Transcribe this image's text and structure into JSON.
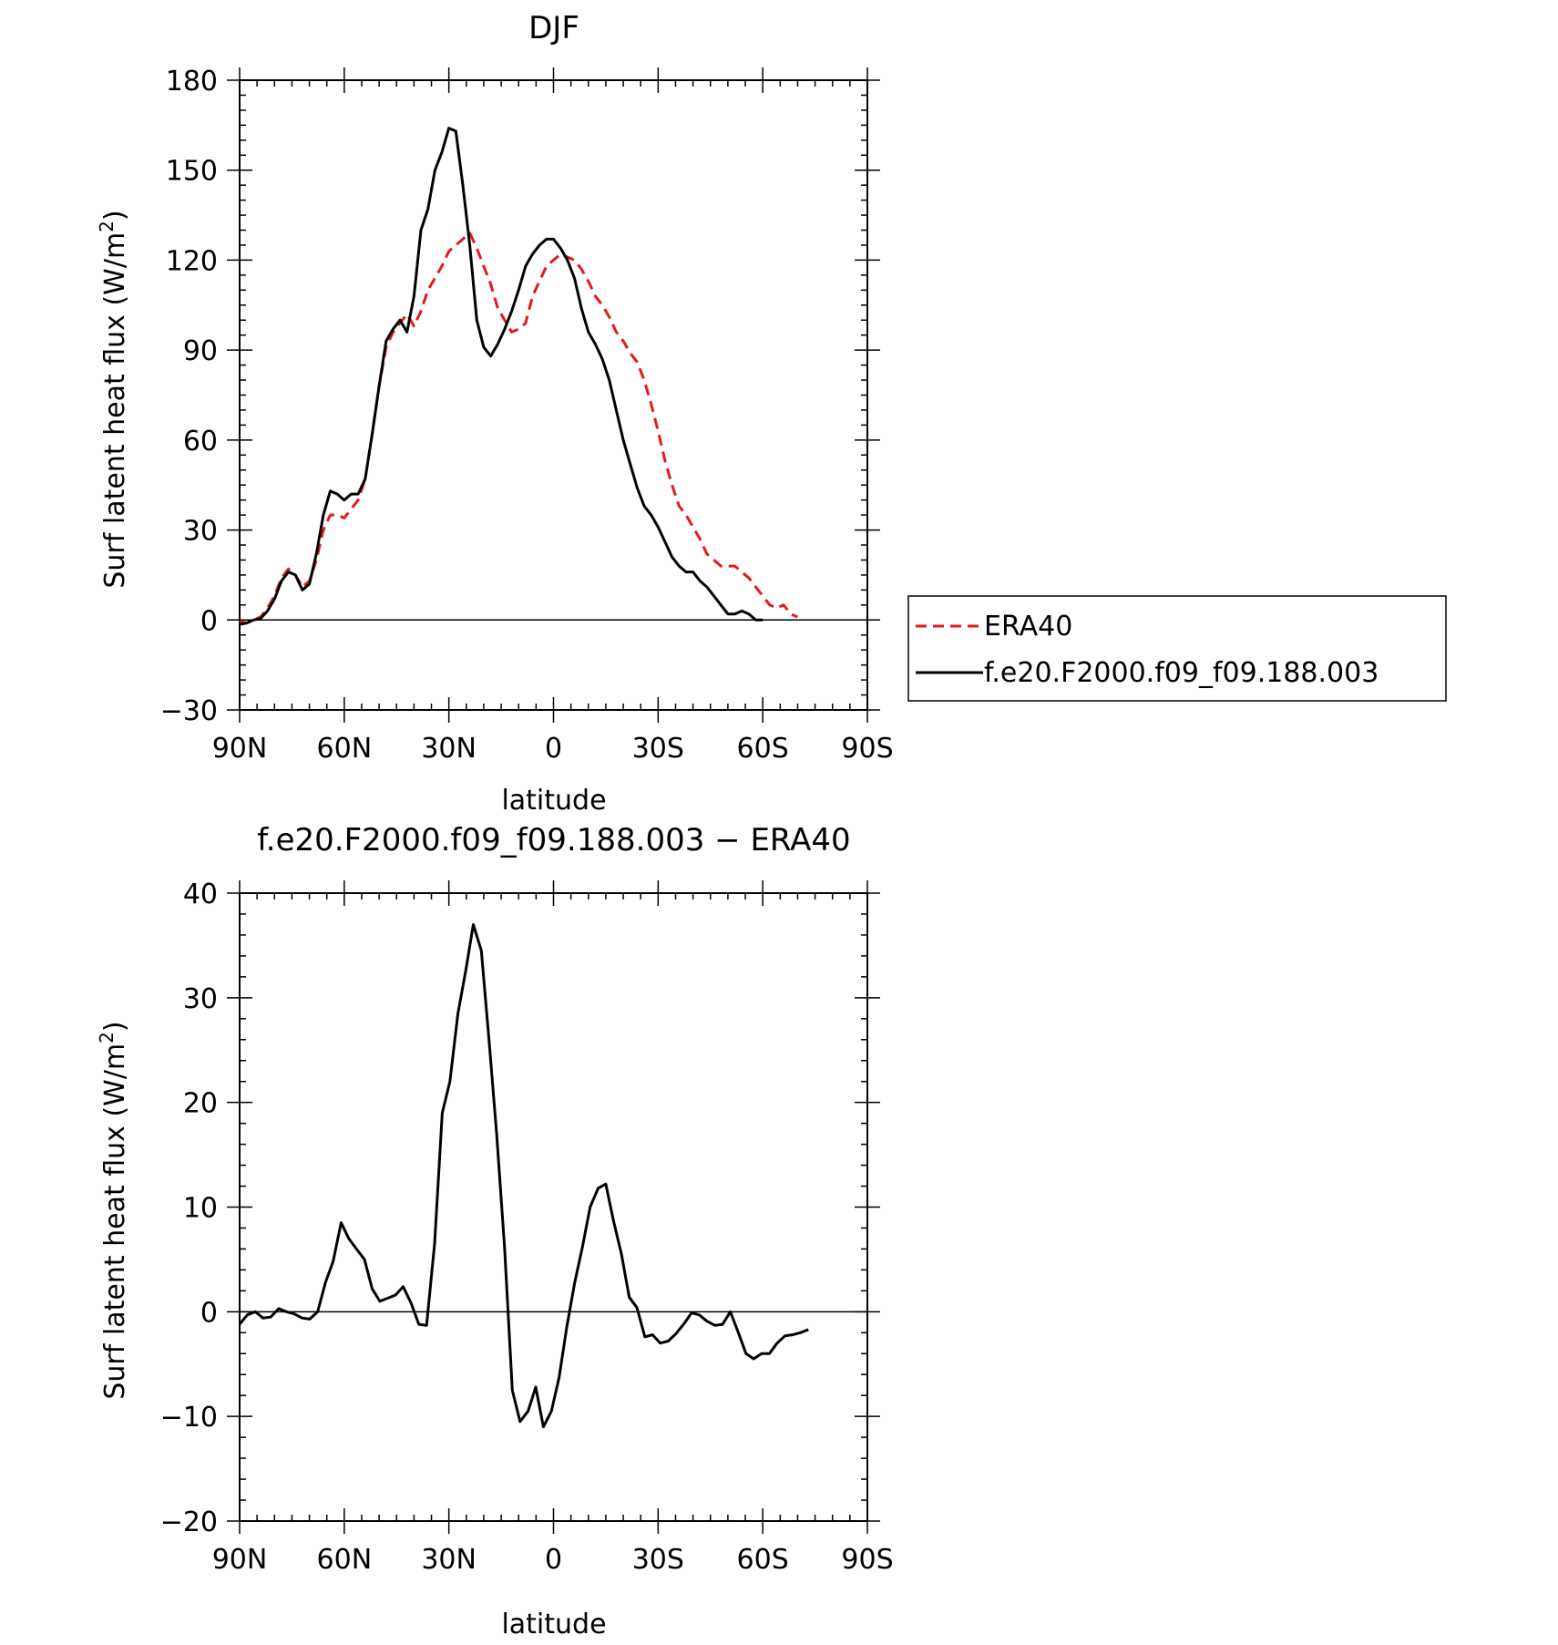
{
  "chart_data": [
    {
      "type": "line",
      "title": "DJF",
      "xlabel": "latitude",
      "ylabel": "Surf latent heat flux (W/m²)",
      "ylabel_main": "Surf latent heat flux (W/m",
      "ylabel_sup": "2",
      "ylabel_close": ")",
      "xlim": [
        90,
        -90
      ],
      "ylim": [
        -30,
        180
      ],
      "x_ticks": [
        {
          "value": 90,
          "label": "90N"
        },
        {
          "value": 60,
          "label": "60N"
        },
        {
          "value": 30,
          "label": "30N"
        },
        {
          "value": 0,
          "label": "0"
        },
        {
          "value": -30,
          "label": "30S"
        },
        {
          "value": -60,
          "label": "60S"
        },
        {
          "value": -90,
          "label": "90S"
        }
      ],
      "y_ticks": [
        {
          "value": 180,
          "label": "180"
        },
        {
          "value": 150,
          "label": "150"
        },
        {
          "value": 120,
          "label": "120"
        },
        {
          "value": 90,
          "label": "90"
        },
        {
          "value": 60,
          "label": "60"
        },
        {
          "value": 30,
          "label": "30"
        },
        {
          "value": 0,
          "label": "0"
        },
        {
          "value": -30,
          "label": "−30"
        }
      ],
      "zero_line": true,
      "legend": {
        "position": "right"
      },
      "series": [
        {
          "name": "ERA40",
          "color": "#e41a1c",
          "dash": "dashed",
          "points": [
            [
              90,
              -0.5
            ],
            [
              88,
              -1
            ],
            [
              86,
              0
            ],
            [
              84,
              1
            ],
            [
              82,
              4
            ],
            [
              80,
              8
            ],
            [
              78,
              14
            ],
            [
              76,
              17
            ],
            [
              74,
              15
            ],
            [
              72,
              11
            ],
            [
              70,
              13
            ],
            [
              68,
              20
            ],
            [
              66,
              30
            ],
            [
              64,
              35
            ],
            [
              62,
              35
            ],
            [
              60,
              34
            ],
            [
              58,
              37
            ],
            [
              56,
              40
            ],
            [
              54,
              47
            ],
            [
              52,
              62
            ],
            [
              50,
              78
            ],
            [
              48,
              91
            ],
            [
              46,
              96
            ],
            [
              44,
              99
            ],
            [
              42,
              102
            ],
            [
              40,
              98
            ],
            [
              38,
              103
            ],
            [
              36,
              110
            ],
            [
              34,
              114
            ],
            [
              32,
              118
            ],
            [
              30,
              123
            ],
            [
              28,
              125
            ],
            [
              26,
              127
            ],
            [
              24,
              129
            ],
            [
              22,
              124
            ],
            [
              20,
              118
            ],
            [
              18,
              112
            ],
            [
              16,
              104
            ],
            [
              14,
              100
            ],
            [
              12,
              96
            ],
            [
              10,
              97
            ],
            [
              8,
              99
            ],
            [
              6,
              108
            ],
            [
              4,
              113
            ],
            [
              2,
              118
            ],
            [
              0,
              120
            ],
            [
              -2,
              122
            ],
            [
              -4,
              121
            ],
            [
              -6,
              120
            ],
            [
              -8,
              117
            ],
            [
              -10,
              113
            ],
            [
              -12,
              108
            ],
            [
              -14,
              105
            ],
            [
              -16,
              101
            ],
            [
              -18,
              96
            ],
            [
              -20,
              93
            ],
            [
              -22,
              89
            ],
            [
              -24,
              86
            ],
            [
              -26,
              80
            ],
            [
              -28,
              72
            ],
            [
              -30,
              63
            ],
            [
              -32,
              53
            ],
            [
              -34,
              45
            ],
            [
              -36,
              38
            ],
            [
              -38,
              35
            ],
            [
              -40,
              31
            ],
            [
              -42,
              27
            ],
            [
              -44,
              22
            ],
            [
              -46,
              20
            ],
            [
              -48,
              18
            ],
            [
              -50,
              18
            ],
            [
              -52,
              18
            ],
            [
              -54,
              16
            ],
            [
              -56,
              14
            ],
            [
              -58,
              11
            ],
            [
              -60,
              8
            ],
            [
              -62,
              5
            ],
            [
              -64,
              4
            ],
            [
              -66,
              5
            ],
            [
              -68,
              2
            ],
            [
              -70,
              1
            ]
          ]
        },
        {
          "name": "f.e20.F2000.f09_f09.188.003",
          "color": "#000000",
          "dash": "solid",
          "points": [
            [
              90,
              -1.5
            ],
            [
              88,
              -1
            ],
            [
              86,
              0
            ],
            [
              84,
              0.5
            ],
            [
              82,
              3
            ],
            [
              80,
              7
            ],
            [
              78,
              13
            ],
            [
              76,
              16
            ],
            [
              74,
              15
            ],
            [
              72,
              10
            ],
            [
              70,
              12
            ],
            [
              68,
              22
            ],
            [
              66,
              35
            ],
            [
              64,
              43
            ],
            [
              62,
              42
            ],
            [
              60,
              40
            ],
            [
              58,
              42
            ],
            [
              56,
              42
            ],
            [
              54,
              47
            ],
            [
              52,
              62
            ],
            [
              50,
              78
            ],
            [
              48,
              93
            ],
            [
              46,
              97
            ],
            [
              44,
              100
            ],
            [
              42,
              96
            ],
            [
              40,
              108
            ],
            [
              38,
              130
            ],
            [
              36,
              137
            ],
            [
              34,
              150
            ],
            [
              32,
              156
            ],
            [
              30,
              164
            ],
            [
              28,
              163
            ],
            [
              26,
              145
            ],
            [
              24,
              125
            ],
            [
              22,
              100
            ],
            [
              20,
              91
            ],
            [
              18,
              88
            ],
            [
              16,
              92
            ],
            [
              14,
              97
            ],
            [
              12,
              103
            ],
            [
              10,
              110
            ],
            [
              8,
              118
            ],
            [
              6,
              122
            ],
            [
              4,
              125
            ],
            [
              2,
              127
            ],
            [
              0,
              127
            ],
            [
              -2,
              124
            ],
            [
              -4,
              120
            ],
            [
              -6,
              114
            ],
            [
              -8,
              104
            ],
            [
              -10,
              96
            ],
            [
              -12,
              92
            ],
            [
              -14,
              87
            ],
            [
              -16,
              80
            ],
            [
              -18,
              70
            ],
            [
              -20,
              60
            ],
            [
              -22,
              52
            ],
            [
              -24,
              44
            ],
            [
              -26,
              38
            ],
            [
              -28,
              35
            ],
            [
              -30,
              31
            ],
            [
              -32,
              26
            ],
            [
              -34,
              21
            ],
            [
              -36,
              18
            ],
            [
              -38,
              16
            ],
            [
              -40,
              16
            ],
            [
              -42,
              13
            ],
            [
              -44,
              11
            ],
            [
              -46,
              8
            ],
            [
              -48,
              5
            ],
            [
              -50,
              2
            ],
            [
              -52,
              2
            ],
            [
              -54,
              3
            ],
            [
              -56,
              2
            ],
            [
              -58,
              0
            ],
            [
              -60,
              0
            ]
          ]
        }
      ]
    },
    {
      "type": "line",
      "title": "f.e20.F2000.f09_f09.188.003 − ERA40",
      "xlabel": "latitude",
      "ylabel": "Surf latent heat flux (W/m²)",
      "ylabel_main": "Surf latent heat flux (W/m",
      "ylabel_sup": "2",
      "ylabel_close": ")",
      "xlim": [
        90,
        -90
      ],
      "ylim": [
        -20,
        40
      ],
      "x_ticks": [
        {
          "value": 90,
          "label": "90N"
        },
        {
          "value": 60,
          "label": "60N"
        },
        {
          "value": 30,
          "label": "30N"
        },
        {
          "value": 0,
          "label": "0"
        },
        {
          "value": -30,
          "label": "30S"
        },
        {
          "value": -60,
          "label": "60S"
        },
        {
          "value": -90,
          "label": "90S"
        }
      ],
      "y_ticks": [
        {
          "value": 40,
          "label": "40"
        },
        {
          "value": 30,
          "label": "30"
        },
        {
          "value": 20,
          "label": "20"
        },
        {
          "value": 10,
          "label": "10"
        },
        {
          "value": 0,
          "label": "0"
        },
        {
          "value": -10,
          "label": "−10"
        },
        {
          "value": -20,
          "label": "−20"
        }
      ],
      "zero_line": true,
      "series": [
        {
          "color": "#000000",
          "dash": "solid",
          "points": [
            [
              90,
              -1.2
            ],
            [
              87.8,
              -0.3
            ],
            [
              85.5,
              0
            ],
            [
              83.3,
              -0.6
            ],
            [
              81.1,
              -0.5
            ],
            [
              78.8,
              0.3
            ],
            [
              76.6,
              0
            ],
            [
              74.4,
              -0.2
            ],
            [
              72.1,
              -0.6
            ],
            [
              69.9,
              -0.7
            ],
            [
              67.6,
              0
            ],
            [
              65.4,
              2.8
            ],
            [
              63.2,
              4.8
            ],
            [
              60.9,
              8.5
            ],
            [
              58.7,
              7
            ],
            [
              56.5,
              6
            ],
            [
              54.2,
              5
            ],
            [
              52,
              2.2
            ],
            [
              49.8,
              1
            ],
            [
              47.5,
              1.3
            ],
            [
              45.3,
              1.6
            ],
            [
              43.1,
              2.4
            ],
            [
              40.8,
              0.8
            ],
            [
              38.6,
              -1.2
            ],
            [
              36.4,
              -1.3
            ],
            [
              34.1,
              6.5
            ],
            [
              31.9,
              19
            ],
            [
              29.7,
              22
            ],
            [
              27.4,
              28.5
            ],
            [
              25.2,
              32.5
            ],
            [
              23,
              37
            ],
            [
              20.7,
              34.5
            ],
            [
              18.5,
              26
            ],
            [
              16.3,
              17
            ],
            [
              14,
              6
            ],
            [
              11.8,
              -7.5
            ],
            [
              9.6,
              -10.5
            ],
            [
              7.3,
              -9.5
            ],
            [
              5.1,
              -7.2
            ],
            [
              2.9,
              -11
            ],
            [
              0.6,
              -9.5
            ],
            [
              -1.6,
              -6.3
            ],
            [
              -3.8,
              -1.5
            ],
            [
              -6.1,
              2.8
            ],
            [
              -8.3,
              6.2
            ],
            [
              -10.5,
              10
            ],
            [
              -12.8,
              11.8
            ],
            [
              -15,
              12.2
            ],
            [
              -17.2,
              8.7
            ],
            [
              -19.5,
              5.5
            ],
            [
              -21.7,
              1.4
            ],
            [
              -23.9,
              0.4
            ],
            [
              -26.2,
              -2.4
            ],
            [
              -28.4,
              -2.2
            ],
            [
              -30.6,
              -3
            ],
            [
              -32.9,
              -2.8
            ],
            [
              -35.1,
              -2.1
            ],
            [
              -37.3,
              -1.2
            ],
            [
              -39.6,
              -0.1
            ],
            [
              -41.8,
              -0.3
            ],
            [
              -44,
              -0.9
            ],
            [
              -46.3,
              -1.3
            ],
            [
              -48.5,
              -1.2
            ],
            [
              -50.7,
              0
            ],
            [
              -53,
              -2
            ],
            [
              -55.2,
              -4
            ],
            [
              -57.4,
              -4.5
            ],
            [
              -59.7,
              -4
            ],
            [
              -61.9,
              -4
            ],
            [
              -64.1,
              -3
            ],
            [
              -66.4,
              -2.3
            ],
            [
              -68.6,
              -2.2
            ],
            [
              -70.8,
              -2
            ],
            [
              -73.1,
              -1.7
            ]
          ]
        }
      ]
    }
  ]
}
